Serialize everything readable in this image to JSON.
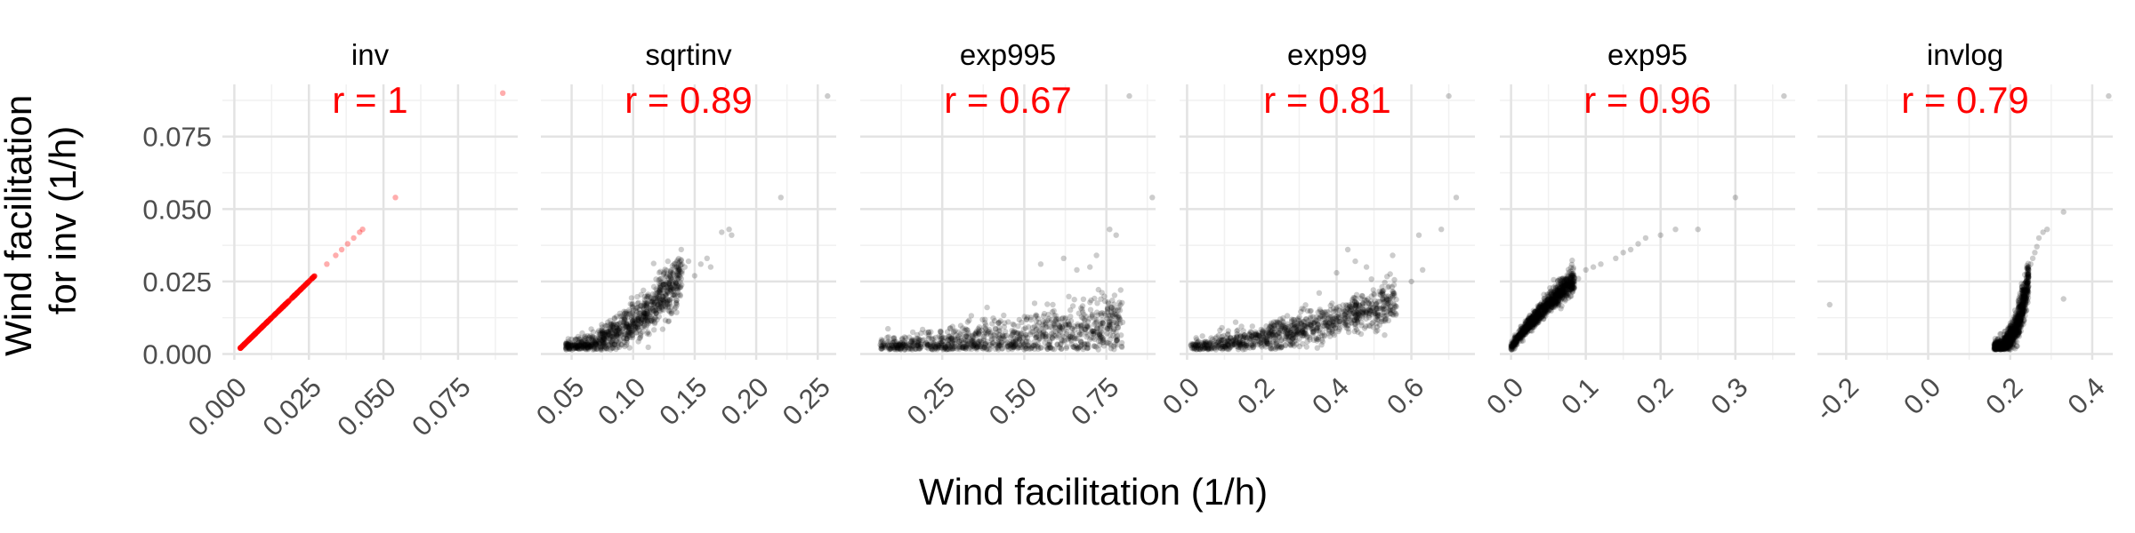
{
  "figure": {
    "ylabel_lines": [
      "Wind facilitation",
      "for inv (1/h)"
    ],
    "xlabel": "Wind facilitation (1/h)"
  },
  "colors": {
    "background": "#ffffff",
    "grid_major": "#e3e3e3",
    "grid_minor": "#f1f1f1",
    "points": "#000000",
    "highlight_points": "#ff0000",
    "correlation_text": "#ff0000",
    "axis_text": "#4d4d4d",
    "title_text": "#000000"
  },
  "chart_data": [
    {
      "type": "scatter",
      "title": "inv",
      "annotation": "r = 1",
      "xlim": [
        -0.004,
        0.095
      ],
      "xticks": [
        0.0,
        0.025,
        0.05,
        0.075
      ],
      "xticklabels": [
        "0.000",
        "0.025",
        "0.050",
        "0.075"
      ],
      "ylim": [
        -0.002,
        0.093
      ],
      "yticks": [
        0.0,
        0.025,
        0.05,
        0.075
      ],
      "yticklabels": [
        "0.000",
        "0.025",
        "0.050",
        "0.075"
      ],
      "point_color": "#ff0000",
      "cloud": [
        {
          "kind": "linear",
          "n": 360,
          "x0": 0.002,
          "x1": 0.027,
          "noise": 0
        }
      ],
      "points": [
        [
          0.031,
          0.031
        ],
        [
          0.034,
          0.034
        ],
        [
          0.036,
          0.036
        ],
        [
          0.038,
          0.038
        ],
        [
          0.04,
          0.04
        ],
        [
          0.042,
          0.042
        ],
        [
          0.043,
          0.043
        ],
        [
          0.054,
          0.054
        ],
        [
          0.09,
          0.09
        ]
      ]
    },
    {
      "type": "scatter",
      "title": "sqrtinv",
      "annotation": "r = 0.89",
      "xlim": [
        0.025,
        0.265
      ],
      "xticks": [
        0.05,
        0.1,
        0.15,
        0.2,
        0.25
      ],
      "xticklabels": [
        "0.05",
        "0.10",
        "0.15",
        "0.20",
        "0.25"
      ],
      "ylim": [
        -0.002,
        0.093
      ],
      "yticks": [
        0.0,
        0.025,
        0.05,
        0.075
      ],
      "point_color": "#000000",
      "cloud": [
        {
          "kind": "power",
          "n": 900,
          "x0": 0.045,
          "x1": 0.14,
          "a": 0.002,
          "b": 0.026,
          "p": 2.0,
          "noise": 0.0045
        }
      ],
      "points": [
        [
          0.142,
          0.03
        ],
        [
          0.145,
          0.032
        ],
        [
          0.15,
          0.027
        ],
        [
          0.155,
          0.031
        ],
        [
          0.16,
          0.033
        ],
        [
          0.163,
          0.03
        ],
        [
          0.172,
          0.042
        ],
        [
          0.178,
          0.043
        ],
        [
          0.18,
          0.041
        ],
        [
          0.22,
          0.054
        ],
        [
          0.258,
          0.089
        ]
      ]
    },
    {
      "type": "scatter",
      "title": "exp995",
      "annotation": "r = 0.67",
      "xlim": [
        0.0,
        0.9
      ],
      "xticks": [
        0.25,
        0.5,
        0.75
      ],
      "xticklabels": [
        "0.25",
        "0.50",
        "0.75"
      ],
      "ylim": [
        -0.002,
        0.093
      ],
      "yticks": [
        0.0,
        0.025,
        0.05,
        0.075
      ],
      "point_color": "#000000",
      "cloud": [
        {
          "kind": "power",
          "n": 1000,
          "x0": 0.06,
          "x1": 0.8,
          "a": 0.002,
          "b": 0.008,
          "p": 1.5,
          "noise": 0.0055
        }
      ],
      "points": [
        [
          0.55,
          0.031
        ],
        [
          0.62,
          0.033
        ],
        [
          0.66,
          0.029
        ],
        [
          0.7,
          0.03
        ],
        [
          0.72,
          0.034
        ],
        [
          0.76,
          0.043
        ],
        [
          0.78,
          0.041
        ],
        [
          0.82,
          0.089
        ],
        [
          0.89,
          0.054
        ]
      ]
    },
    {
      "type": "scatter",
      "title": "exp99",
      "annotation": "r = 0.81",
      "xlim": [
        -0.02,
        0.77
      ],
      "xticks": [
        0.0,
        0.2,
        0.4,
        0.6
      ],
      "xticklabels": [
        "0.0",
        "0.2",
        "0.4",
        "0.6"
      ],
      "ylim": [
        -0.002,
        0.093
      ],
      "yticks": [
        0.0,
        0.025,
        0.05,
        0.075
      ],
      "point_color": "#000000",
      "cloud": [
        {
          "kind": "power",
          "n": 1000,
          "x0": 0.01,
          "x1": 0.56,
          "a": 0.002,
          "b": 0.016,
          "p": 1.4,
          "noise": 0.004
        }
      ],
      "points": [
        [
          0.4,
          0.028
        ],
        [
          0.43,
          0.036
        ],
        [
          0.45,
          0.032
        ],
        [
          0.48,
          0.03
        ],
        [
          0.55,
          0.034
        ],
        [
          0.6,
          0.025
        ],
        [
          0.62,
          0.041
        ],
        [
          0.63,
          0.029
        ],
        [
          0.68,
          0.043
        ],
        [
          0.72,
          0.054
        ],
        [
          0.7,
          0.089
        ]
      ]
    },
    {
      "type": "scatter",
      "title": "exp95",
      "annotation": "r = 0.96",
      "xlim": [
        -0.015,
        0.38
      ],
      "xticks": [
        0.0,
        0.1,
        0.2,
        0.3
      ],
      "xticklabels": [
        "0.0",
        "0.1",
        "0.2",
        "0.3"
      ],
      "ylim": [
        -0.002,
        0.093
      ],
      "yticks": [
        0.0,
        0.025,
        0.05,
        0.075
      ],
      "point_color": "#000000",
      "cloud": [
        {
          "kind": "power",
          "n": 1000,
          "x0": 0.0,
          "x1": 0.085,
          "a": 0.002,
          "b": 0.024,
          "p": 0.85,
          "noise": 0.0022
        }
      ],
      "points": [
        [
          0.09,
          0.026
        ],
        [
          0.1,
          0.029
        ],
        [
          0.11,
          0.03
        ],
        [
          0.12,
          0.031
        ],
        [
          0.14,
          0.033
        ],
        [
          0.15,
          0.035
        ],
        [
          0.16,
          0.036
        ],
        [
          0.17,
          0.038
        ],
        [
          0.18,
          0.04
        ],
        [
          0.2,
          0.041
        ],
        [
          0.22,
          0.043
        ],
        [
          0.25,
          0.043
        ],
        [
          0.3,
          0.054
        ],
        [
          0.365,
          0.089
        ]
      ]
    },
    {
      "type": "scatter",
      "title": "invlog",
      "annotation": "r = 0.79",
      "xlim": [
        -0.27,
        0.45
      ],
      "xticks": [
        -0.2,
        0.0,
        0.2,
        0.4
      ],
      "xticklabels": [
        "-0.2",
        "0.0",
        "0.2",
        "0.4"
      ],
      "ylim": [
        -0.002,
        0.093
      ],
      "yticks": [
        0.0,
        0.025,
        0.05,
        0.075
      ],
      "point_color": "#000000",
      "cloud": [
        {
          "kind": "power",
          "n": 1000,
          "x0": 0.16,
          "x1": 0.245,
          "a": 0.002,
          "b": 0.024,
          "p": 2.6,
          "noise": 0.0035
        }
      ],
      "points": [
        [
          -0.24,
          0.017
        ],
        [
          0.245,
          0.029
        ],
        [
          0.25,
          0.031
        ],
        [
          0.255,
          0.033
        ],
        [
          0.26,
          0.035
        ],
        [
          0.265,
          0.037
        ],
        [
          0.27,
          0.04
        ],
        [
          0.28,
          0.042
        ],
        [
          0.29,
          0.043
        ],
        [
          0.33,
          0.019
        ],
        [
          0.33,
          0.049
        ],
        [
          0.44,
          0.089
        ]
      ]
    }
  ]
}
